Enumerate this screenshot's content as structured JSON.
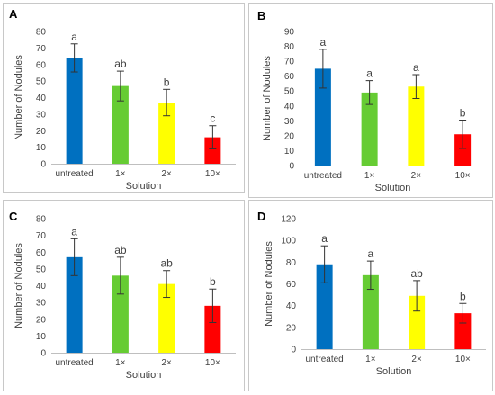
{
  "colors": [
    "#0070c0",
    "#66cc33",
    "#ffff00",
    "#ff0000"
  ],
  "chart_data": [
    {
      "type": "bar",
      "panel": "A",
      "categories": [
        "untreated",
        "1×",
        "2×",
        "10×"
      ],
      "values": [
        64,
        47,
        37,
        16
      ],
      "errors": [
        8.5,
        9,
        8,
        7
      ],
      "significance": [
        "a",
        "ab",
        "b",
        "c"
      ],
      "ylim": [
        0,
        80
      ],
      "yticks": [
        0,
        10,
        20,
        30,
        40,
        50,
        60,
        70,
        80
      ],
      "ylabel": "Number of Nodules",
      "xlabel": "Solution"
    },
    {
      "type": "bar",
      "panel": "B",
      "categories": [
        "untreated",
        "1×",
        "2×",
        "10×"
      ],
      "values": [
        65,
        49,
        53,
        21
      ],
      "errors": [
        13,
        8,
        8,
        9.5
      ],
      "significance": [
        "a",
        "a",
        "a",
        "b"
      ],
      "ylim": [
        0,
        90
      ],
      "yticks": [
        0,
        10,
        20,
        30,
        40,
        50,
        60,
        70,
        80,
        90
      ],
      "ylabel": "Number of Nodules",
      "xlabel": "Solution"
    },
    {
      "type": "bar",
      "panel": "C",
      "categories": [
        "untreated",
        "1×",
        "2×",
        "10×"
      ],
      "values": [
        57,
        46,
        41,
        28
      ],
      "errors": [
        11,
        11,
        8,
        10
      ],
      "significance": [
        "a",
        "ab",
        "ab",
        "b"
      ],
      "ylim": [
        0,
        80
      ],
      "yticks": [
        0,
        10,
        20,
        30,
        40,
        50,
        60,
        70,
        80
      ],
      "ylabel": "Number of Nodules",
      "xlabel": "Solution"
    },
    {
      "type": "bar",
      "panel": "D",
      "categories": [
        "untreated",
        "1×",
        "2×",
        "10×"
      ],
      "values": [
        78,
        68,
        49,
        33
      ],
      "errors": [
        17,
        13,
        14,
        9
      ],
      "significance": [
        "a",
        "a",
        "ab",
        "b"
      ],
      "ylim": [
        0,
        120
      ],
      "yticks": [
        0,
        20,
        40,
        60,
        80,
        100,
        120
      ],
      "ylabel": "Number of Nodules",
      "xlabel": "Solution"
    }
  ]
}
